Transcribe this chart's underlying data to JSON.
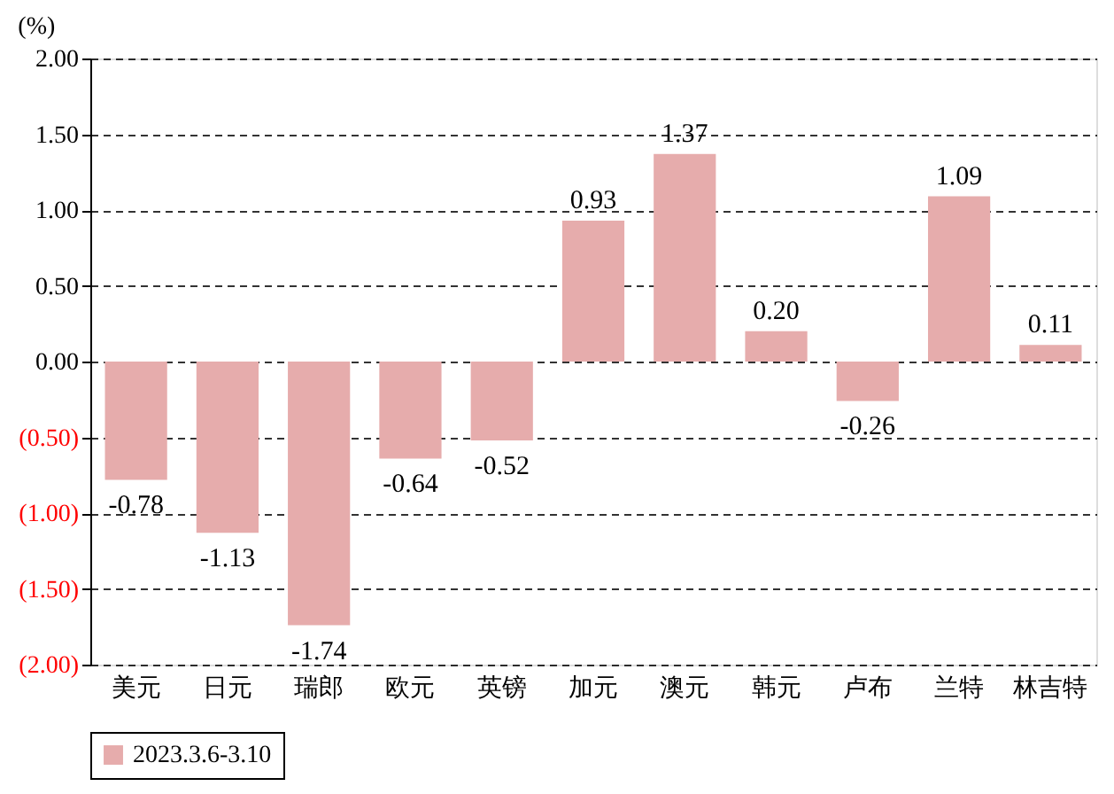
{
  "chart_data": {
    "type": "bar",
    "ylabel": "(%)",
    "categories": [
      "美元",
      "日元",
      "瑞郎",
      "欧元",
      "英镑",
      "加元",
      "澳元",
      "韩元",
      "卢布",
      "兰特",
      "林吉特"
    ],
    "series": [
      {
        "name": "2023.3.6-3.10",
        "color": "#e6acac",
        "values": [
          -0.78,
          -1.13,
          -1.74,
          -0.64,
          -0.52,
          0.93,
          1.37,
          0.2,
          -0.26,
          1.09,
          0.11
        ]
      }
    ],
    "ylim": [
      -2.0,
      2.0
    ],
    "yticks": [
      {
        "value": -2.0,
        "label": "(2.00)"
      },
      {
        "value": -1.5,
        "label": "(1.50)"
      },
      {
        "value": -1.0,
        "label": "(1.00)"
      },
      {
        "value": -0.5,
        "label": "(0.50)"
      },
      {
        "value": 0,
        "label": "0.00"
      },
      {
        "value": 0.5,
        "label": "0.50"
      },
      {
        "value": 1.0,
        "label": "1.00"
      },
      {
        "value": 1.5,
        "label": "1.50"
      },
      {
        "value": 2.0,
        "label": "2.00"
      }
    ],
    "value_labels": [
      "-0.78",
      "-1.13",
      "-1.74",
      "-0.64",
      "-0.52",
      "0.93",
      "1.37",
      "0.20",
      "-0.26",
      "1.09",
      "0.11"
    ],
    "grid": "y",
    "legend": "bottom"
  }
}
